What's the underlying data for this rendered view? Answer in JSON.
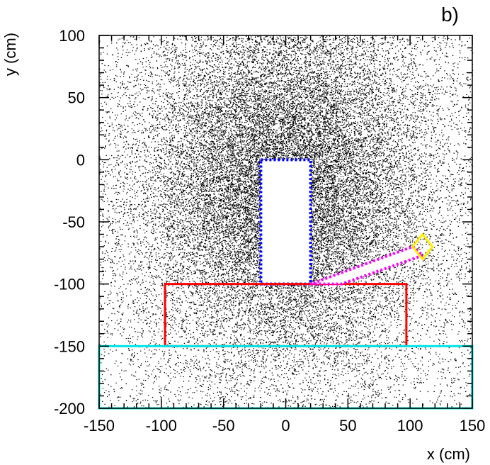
{
  "panel_label": "b)",
  "chart_data": {
    "type": "scatter",
    "xlabel": "x (cm)",
    "ylabel": "y (cm)",
    "xlim": [
      -150,
      150
    ],
    "ylim": [
      -200,
      100
    ],
    "x_ticks": [
      -150,
      -100,
      -50,
      0,
      50,
      100,
      150
    ],
    "y_ticks": [
      -200,
      -150,
      -100,
      -50,
      0,
      50,
      100
    ],
    "grid": false,
    "legend": "none",
    "point_color": "#000000",
    "distribution": {
      "kind": "dense point cloud",
      "center": [
        0,
        -20
      ],
      "core_half_width": [
        60,
        75
      ]
    },
    "regions": [
      {
        "kind": "rect",
        "x": [
          -20,
          20
        ],
        "y": [
          -100,
          0
        ],
        "stroke": "#0000ff",
        "fill": "#ffffff",
        "dash": "dotted"
      },
      {
        "kind": "rect",
        "x": [
          -97,
          97
        ],
        "y": [
          -150,
          -100
        ],
        "stroke": "#ff0000"
      },
      {
        "kind": "rect",
        "x": [
          -150,
          150
        ],
        "y": [
          -200,
          -150
        ],
        "stroke": "#00e5e5"
      },
      {
        "kind": "polygon",
        "points": [
          [
            20,
            -100
          ],
          [
            45,
            -100
          ],
          [
            110,
            -77
          ],
          [
            102,
            -70
          ]
        ],
        "stroke": "#ff00ff",
        "fill": "#ffffff",
        "dash": "dotted"
      },
      {
        "kind": "polygon",
        "points": [
          [
            102,
            -70
          ],
          [
            110,
            -60
          ],
          [
            118,
            -70
          ],
          [
            110,
            -80
          ]
        ],
        "stroke": "#ffee00"
      }
    ]
  }
}
